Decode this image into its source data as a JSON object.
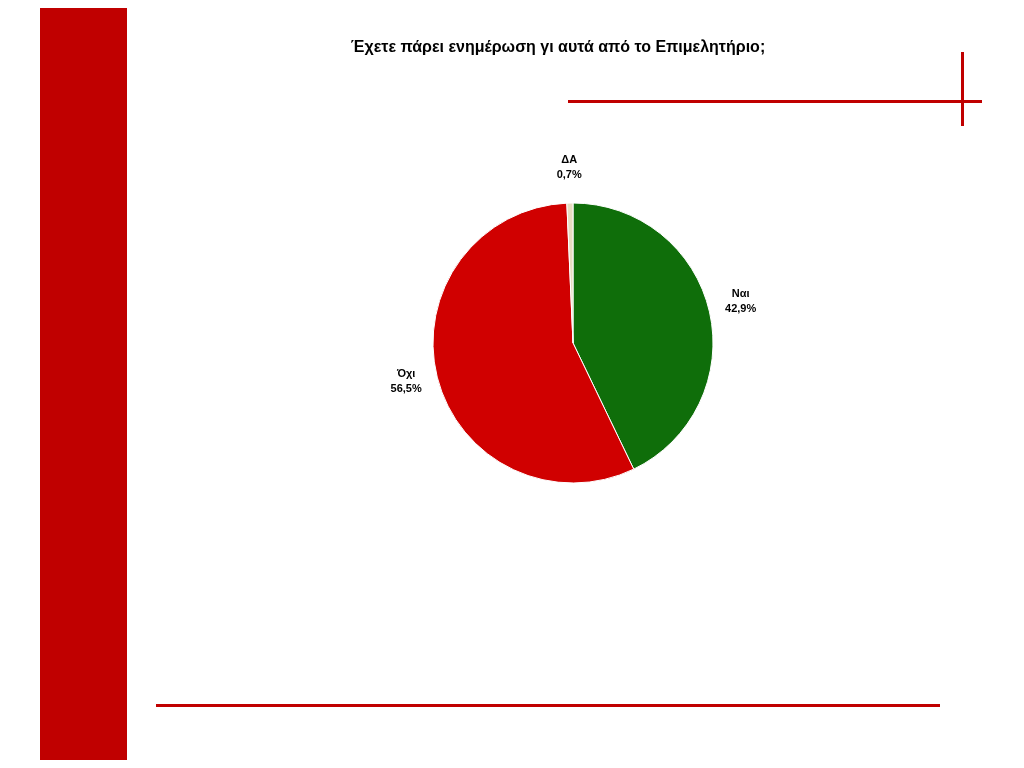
{
  "chart_data": {
    "type": "pie",
    "title": "Έχετε πάρει ενημέρωση γι αυτά από το Επιμελητήριο;",
    "categories": [
      "Ναι",
      "Όχι",
      "ΔΑ"
    ],
    "values": [
      42.9,
      56.5,
      0.7
    ],
    "colors": [
      "#0f6e0a",
      "#d00000",
      "#e6dcc0"
    ],
    "value_labels": [
      "42,9%",
      "56,5%",
      "0,7%"
    ]
  }
}
